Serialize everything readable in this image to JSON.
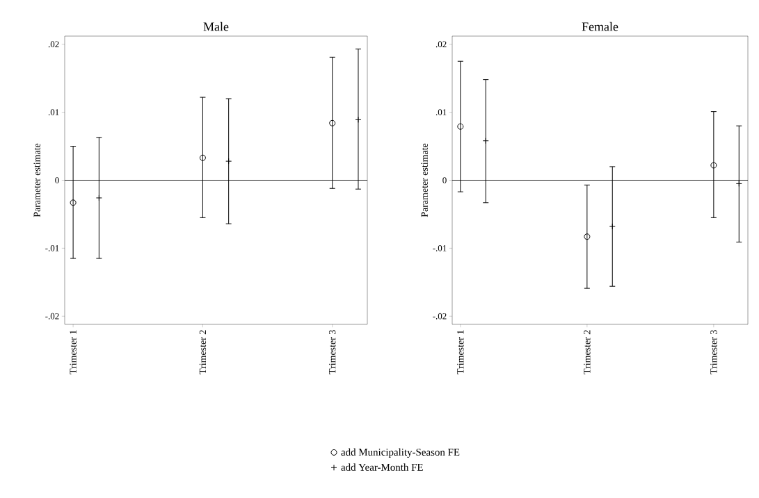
{
  "chart_data": [
    {
      "type": "scatter",
      "title": "Male",
      "ylabel": "Parameter estimate",
      "legend": "bottom",
      "categories": [
        "Trimester 1",
        "Trimester 2",
        "Trimester 3"
      ],
      "ylim": [
        -0.0212,
        0.0212
      ],
      "yticks": [
        {
          "value": -0.02,
          "label": "-.02"
        },
        {
          "value": -0.01,
          "label": "-.01"
        },
        {
          "value": 0,
          "label": "0"
        },
        {
          "value": 0.01,
          "label": ".01"
        },
        {
          "value": 0.02,
          "label": ".02"
        }
      ],
      "ref_lines": [
        {
          "axis": "y",
          "value": 0
        }
      ],
      "series": [
        {
          "name": "add Municipality-Season FE",
          "color": "#000000",
          "marker": "circle",
          "values": [
            -0.0033,
            0.0033,
            0.0084
          ],
          "errors": [
            [
              -0.0115,
              0.005
            ],
            [
              -0.0055,
              0.0122
            ],
            [
              -0.0012,
              0.0181
            ]
          ]
        },
        {
          "name": "add Year-Month FE",
          "color": "#000000",
          "marker": "cross",
          "values": [
            -0.0026,
            0.0028,
            0.0089
          ],
          "errors": [
            [
              -0.0115,
              0.0063
            ],
            [
              -0.0064,
              0.012
            ],
            [
              -0.0013,
              0.0193
            ]
          ]
        }
      ]
    },
    {
      "type": "scatter",
      "title": "Female",
      "ylabel": "Parameter estimate",
      "categories": [
        "Trimester 1",
        "Trimester 2",
        "Trimester 3"
      ],
      "ylim": [
        -0.0212,
        0.0212
      ],
      "yticks": [
        {
          "value": -0.02,
          "label": "-.02"
        },
        {
          "value": -0.01,
          "label": "-.01"
        },
        {
          "value": 0,
          "label": "0"
        },
        {
          "value": 0.01,
          "label": ".01"
        },
        {
          "value": 0.02,
          "label": ".02"
        }
      ],
      "ref_lines": [
        {
          "axis": "y",
          "value": 0
        }
      ],
      "series": [
        {
          "color": "#000000",
          "marker": "circle",
          "values": [
            0.0079,
            -0.0083,
            0.0022
          ],
          "errors": [
            [
              -0.0017,
              0.0175
            ],
            [
              -0.0159,
              -0.0007
            ],
            [
              -0.0055,
              0.0101
            ]
          ]
        },
        {
          "color": "#000000",
          "marker": "cross",
          "values": [
            0.0058,
            -0.0068,
            -0.0005
          ],
          "errors": [
            [
              -0.0033,
              0.0148
            ],
            [
              -0.0156,
              0.002
            ],
            [
              -0.0091,
              0.008
            ]
          ]
        }
      ]
    }
  ]
}
